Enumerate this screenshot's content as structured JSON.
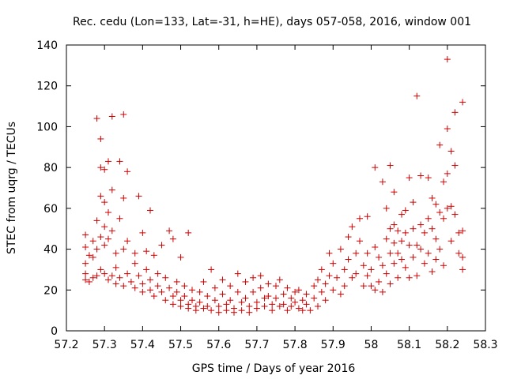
{
  "chart_data": {
    "type": "scatter",
    "title": "Rec. cedu (Lon=133, Lat=-31, h=HE), days 057-058, 2016, window 001",
    "xlabel": "GPS time / Days of year 2016",
    "ylabel": "STEC from uqrg / TECUs",
    "xlim": [
      57.2,
      58.3
    ],
    "ylim": [
      0,
      140
    ],
    "x_ticks": [
      57.2,
      57.3,
      57.4,
      57.5,
      57.6,
      57.7,
      57.8,
      57.9,
      58.0,
      58.1,
      58.2,
      58.3
    ],
    "x_tick_labels": [
      "57.2",
      "57.3",
      "57.4",
      "57.5",
      "57.6",
      "57.7",
      "57.8",
      "57.9",
      "58",
      "58.1",
      "58.2",
      "58.3"
    ],
    "y_ticks": [
      0,
      20,
      40,
      60,
      80,
      100,
      120,
      140
    ],
    "y_tick_labels": [
      "0",
      "20",
      "40",
      "60",
      "80",
      "100",
      "120",
      "140"
    ],
    "grid": false,
    "marker": "plus",
    "color": "#cc0000",
    "series": [
      {
        "points": [
          [
            57.25,
            47
          ],
          [
            57.25,
            41
          ],
          [
            57.25,
            33
          ],
          [
            57.26,
            37
          ],
          [
            57.27,
            44
          ],
          [
            57.27,
            36
          ],
          [
            57.28,
            104
          ],
          [
            57.28,
            54
          ],
          [
            57.28,
            40
          ],
          [
            57.29,
            94
          ],
          [
            57.29,
            80
          ],
          [
            57.29,
            66
          ],
          [
            57.29,
            46
          ],
          [
            57.3,
            79
          ],
          [
            57.3,
            63
          ],
          [
            57.3,
            51
          ],
          [
            57.3,
            42
          ],
          [
            57.31,
            83
          ],
          [
            57.31,
            58
          ],
          [
            57.31,
            45
          ],
          [
            57.32,
            105
          ],
          [
            57.32,
            69
          ],
          [
            57.32,
            49
          ],
          [
            57.33,
            38
          ],
          [
            57.34,
            83
          ],
          [
            57.34,
            55
          ],
          [
            57.35,
            106
          ],
          [
            57.35,
            65
          ],
          [
            57.35,
            40
          ],
          [
            57.36,
            78
          ],
          [
            57.36,
            44
          ],
          [
            57.38,
            38
          ],
          [
            57.39,
            66
          ],
          [
            57.4,
            48
          ],
          [
            57.41,
            39
          ],
          [
            57.42,
            59
          ],
          [
            57.43,
            37
          ],
          [
            57.45,
            42
          ],
          [
            57.47,
            49
          ],
          [
            57.48,
            45
          ],
          [
            57.5,
            36
          ],
          [
            57.52,
            48
          ],
          [
            57.25,
            28
          ],
          [
            57.25,
            25
          ],
          [
            57.26,
            24
          ],
          [
            57.27,
            26
          ],
          [
            57.28,
            27
          ],
          [
            57.29,
            30
          ],
          [
            57.3,
            28
          ],
          [
            57.31,
            25
          ],
          [
            57.32,
            27
          ],
          [
            57.33,
            23
          ],
          [
            57.33,
            31
          ],
          [
            57.34,
            26
          ],
          [
            57.35,
            22
          ],
          [
            57.36,
            28
          ],
          [
            57.37,
            24
          ],
          [
            57.38,
            21
          ],
          [
            57.38,
            33
          ],
          [
            57.39,
            27
          ],
          [
            57.4,
            23
          ],
          [
            57.4,
            19
          ],
          [
            57.41,
            30
          ],
          [
            57.42,
            25
          ],
          [
            57.42,
            20
          ],
          [
            57.43,
            17
          ],
          [
            57.44,
            28
          ],
          [
            57.44,
            22
          ],
          [
            57.45,
            19
          ],
          [
            57.46,
            15
          ],
          [
            57.46,
            26
          ],
          [
            57.47,
            21
          ],
          [
            57.48,
            17
          ],
          [
            57.48,
            13
          ],
          [
            57.49,
            24
          ],
          [
            57.49,
            19
          ],
          [
            57.5,
            15
          ],
          [
            57.5,
            12
          ],
          [
            57.51,
            22
          ],
          [
            57.51,
            17
          ],
          [
            57.52,
            13
          ],
          [
            57.52,
            11
          ],
          [
            57.53,
            20
          ],
          [
            57.53,
            15
          ],
          [
            57.54,
            12
          ],
          [
            57.54,
            10
          ],
          [
            57.55,
            19
          ],
          [
            57.55,
            14
          ],
          [
            57.56,
            11
          ],
          [
            57.56,
            24
          ],
          [
            57.57,
            17
          ],
          [
            57.57,
            12
          ],
          [
            57.58,
            10
          ],
          [
            57.58,
            30
          ],
          [
            57.59,
            21
          ],
          [
            57.59,
            15
          ],
          [
            57.6,
            12
          ],
          [
            57.6,
            9
          ],
          [
            57.61,
            25
          ],
          [
            57.61,
            18
          ],
          [
            57.62,
            13
          ],
          [
            57.62,
            10
          ],
          [
            57.63,
            22
          ],
          [
            57.63,
            15
          ],
          [
            57.64,
            11
          ],
          [
            57.64,
            9
          ],
          [
            57.65,
            28
          ],
          [
            57.65,
            19
          ],
          [
            57.66,
            14
          ],
          [
            57.66,
            10
          ],
          [
            57.67,
            24
          ],
          [
            57.67,
            16
          ],
          [
            57.68,
            12
          ],
          [
            57.68,
            9
          ],
          [
            57.69,
            26
          ],
          [
            57.69,
            19
          ],
          [
            57.7,
            14
          ],
          [
            57.7,
            11
          ],
          [
            57.71,
            27
          ],
          [
            57.71,
            21
          ],
          [
            57.72,
            16
          ],
          [
            57.72,
            12
          ],
          [
            57.73,
            23
          ],
          [
            57.73,
            17
          ],
          [
            57.74,
            13
          ],
          [
            57.74,
            10
          ],
          [
            57.75,
            22
          ],
          [
            57.75,
            16
          ],
          [
            57.76,
            12
          ],
          [
            57.76,
            25
          ],
          [
            57.77,
            18
          ],
          [
            57.77,
            13
          ],
          [
            57.78,
            10
          ],
          [
            57.78,
            21
          ],
          [
            57.79,
            16
          ],
          [
            57.79,
            12
          ],
          [
            57.8,
            19
          ],
          [
            57.8,
            14
          ],
          [
            57.81,
            11
          ],
          [
            57.81,
            20
          ],
          [
            57.82,
            15
          ],
          [
            57.82,
            10
          ],
          [
            57.83,
            18
          ],
          [
            57.83,
            13
          ],
          [
            57.84,
            10
          ],
          [
            57.85,
            22
          ],
          [
            57.85,
            16
          ],
          [
            57.86,
            12
          ],
          [
            57.86,
            25
          ],
          [
            57.87,
            19
          ],
          [
            57.87,
            30
          ],
          [
            57.88,
            23
          ],
          [
            57.88,
            15
          ],
          [
            57.89,
            38
          ],
          [
            57.89,
            27
          ],
          [
            57.9,
            20
          ],
          [
            57.9,
            33
          ],
          [
            57.91,
            26
          ],
          [
            57.92,
            18
          ],
          [
            57.92,
            40
          ],
          [
            57.93,
            30
          ],
          [
            57.93,
            22
          ],
          [
            57.94,
            46
          ],
          [
            57.94,
            35
          ],
          [
            57.95,
            26
          ],
          [
            57.95,
            51
          ],
          [
            57.96,
            38
          ],
          [
            57.96,
            28
          ],
          [
            57.97,
            55
          ],
          [
            57.97,
            44
          ],
          [
            57.98,
            32
          ],
          [
            57.98,
            22
          ],
          [
            57.99,
            56
          ],
          [
            57.99,
            38
          ],
          [
            57.99,
            27
          ],
          [
            58.0,
            30
          ],
          [
            58.0,
            22
          ],
          [
            58.01,
            80
          ],
          [
            58.01,
            41
          ],
          [
            58.01,
            20
          ],
          [
            58.02,
            36
          ],
          [
            58.02,
            24
          ],
          [
            58.03,
            73
          ],
          [
            58.03,
            32
          ],
          [
            58.03,
            19
          ],
          [
            58.04,
            60
          ],
          [
            58.04,
            45
          ],
          [
            58.04,
            28
          ],
          [
            58.05,
            81
          ],
          [
            58.05,
            50
          ],
          [
            58.05,
            38
          ],
          [
            58.05,
            23
          ],
          [
            58.06,
            68
          ],
          [
            58.06,
            52
          ],
          [
            58.06,
            43
          ],
          [
            58.06,
            33
          ],
          [
            58.07,
            49
          ],
          [
            58.07,
            38
          ],
          [
            58.07,
            26
          ],
          [
            58.08,
            57
          ],
          [
            58.08,
            44
          ],
          [
            58.08,
            35
          ],
          [
            58.09,
            59
          ],
          [
            58.09,
            48
          ],
          [
            58.09,
            31
          ],
          [
            58.1,
            75
          ],
          [
            58.1,
            42
          ],
          [
            58.1,
            26
          ],
          [
            58.11,
            63
          ],
          [
            58.11,
            50
          ],
          [
            58.11,
            36
          ],
          [
            58.12,
            115
          ],
          [
            58.12,
            42
          ],
          [
            58.12,
            27
          ],
          [
            58.13,
            76
          ],
          [
            58.13,
            52
          ],
          [
            58.13,
            40
          ],
          [
            58.14,
            48
          ],
          [
            58.14,
            33
          ],
          [
            58.15,
            75
          ],
          [
            58.15,
            55
          ],
          [
            58.15,
            38
          ],
          [
            58.16,
            65
          ],
          [
            58.16,
            50
          ],
          [
            58.16,
            29
          ],
          [
            58.17,
            62
          ],
          [
            58.17,
            45
          ],
          [
            58.17,
            35
          ],
          [
            58.18,
            91
          ],
          [
            58.18,
            58
          ],
          [
            58.18,
            40
          ],
          [
            58.19,
            73
          ],
          [
            58.19,
            55
          ],
          [
            58.19,
            32
          ],
          [
            58.2,
            133
          ],
          [
            58.2,
            99
          ],
          [
            58.2,
            77
          ],
          [
            58.2,
            60
          ],
          [
            58.21,
            88
          ],
          [
            58.21,
            61
          ],
          [
            58.21,
            44
          ],
          [
            58.22,
            107
          ],
          [
            58.22,
            81
          ],
          [
            58.22,
            57
          ],
          [
            58.23,
            48
          ],
          [
            58.23,
            38
          ],
          [
            58.24,
            112
          ],
          [
            58.24,
            49
          ],
          [
            58.24,
            36
          ],
          [
            58.24,
            30
          ]
        ]
      }
    ]
  }
}
